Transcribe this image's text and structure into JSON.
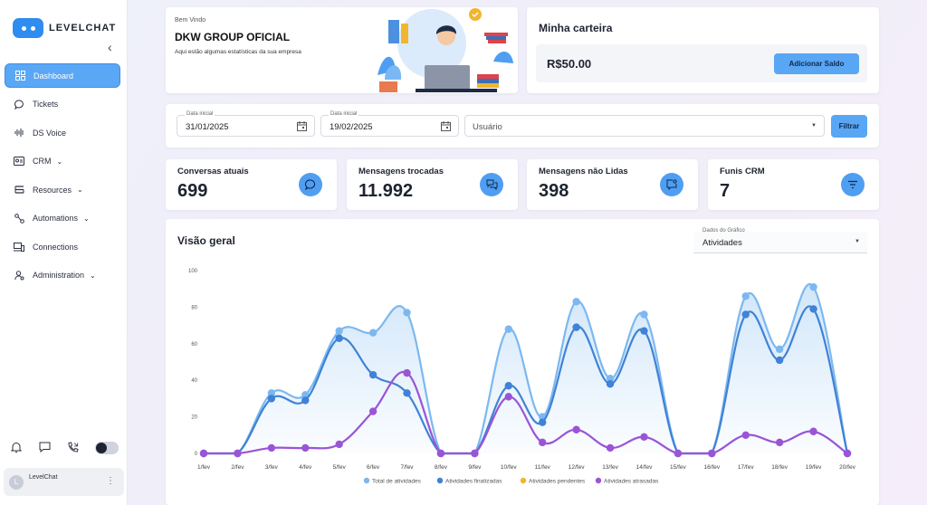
{
  "brand": {
    "name": "LEVELCHAT"
  },
  "sidebar": {
    "collapse_icon": "chevron-left-icon",
    "items": [
      {
        "label": "Dashboard",
        "icon": "grid-icon",
        "active": true
      },
      {
        "label": "Tickets",
        "icon": "chat-bubble-icon"
      },
      {
        "label": "DS Voice",
        "icon": "waveform-icon"
      },
      {
        "label": "CRM",
        "icon": "id-card-icon",
        "expandable": true
      },
      {
        "label": "Resources",
        "icon": "stack-icon",
        "expandable": true
      },
      {
        "label": "Automations",
        "icon": "flow-icon",
        "expandable": true
      },
      {
        "label": "Connections",
        "icon": "devices-icon"
      },
      {
        "label": "Administration",
        "icon": "user-gear-icon",
        "expandable": true
      }
    ],
    "bottom_icons": [
      "bell-icon",
      "message-icon",
      "phone-icon"
    ],
    "user": {
      "initial": "L",
      "name": "LevelChat"
    }
  },
  "welcome": {
    "greeting": "Bem Vindo",
    "company": "DKW GROUP OFICIAL",
    "subtitle": "Aqui estão algumas estatísticas da sua empresa"
  },
  "wallet": {
    "title": "Minha carteira",
    "balance": "R$50.00",
    "add_button": "Adicionar Saldo"
  },
  "filters": {
    "start_label": "Data inicial",
    "start_value": "31/01/2025",
    "end_label": "Data inicial",
    "end_value": "19/02/2025",
    "user_placeholder": "Usuário",
    "filter_button": "Filtrar"
  },
  "stats": [
    {
      "label": "Conversas atuais",
      "value": "699",
      "icon": "chat-bubble-icon"
    },
    {
      "label": "Mensagens trocadas",
      "value": "11.992",
      "icon": "chats-icon"
    },
    {
      "label": "Mensagens não Lidas",
      "value": "398",
      "icon": "unread-message-icon"
    },
    {
      "label": "Funis CRM",
      "value": "7",
      "icon": "filter-icon"
    }
  ],
  "overview": {
    "title": "Visão geral",
    "select_label": "Dados do Gráfico",
    "select_value": "Atividades"
  },
  "colors": {
    "accent": "#59a6f4",
    "series_total": "#7cb8f0",
    "series_finalizadas": "#3f82d6",
    "series_pendentes": "#f2b531",
    "series_atrasadas": "#9a55d6"
  },
  "chart_data": {
    "type": "line",
    "x": [
      "1/fev",
      "2/fev",
      "3/fev",
      "4/fev",
      "5/fev",
      "6/fev",
      "7/fev",
      "8/fev",
      "9/fev",
      "10/fev",
      "11/fev",
      "12/fev",
      "13/fev",
      "14/fev",
      "15/fev",
      "16/fev",
      "17/fev",
      "18/fev",
      "19/fev",
      "20/fev"
    ],
    "ylim": [
      0,
      100
    ],
    "yticks": [
      0,
      20,
      40,
      60,
      80,
      100
    ],
    "series": [
      {
        "name": "Total de atividades",
        "values": [
          0,
          0,
          33,
          32,
          67,
          66,
          77,
          0,
          0,
          68,
          20,
          83,
          41,
          76,
          0,
          0,
          86,
          57,
          91,
          0
        ]
      },
      {
        "name": "Atividades finalizadas",
        "values": [
          0,
          0,
          30,
          29,
          63,
          43,
          33,
          0,
          0,
          37,
          17,
          69,
          38,
          67,
          0,
          0,
          76,
          51,
          79,
          0
        ]
      },
      {
        "name": "Atividades pendentes",
        "values": [
          0,
          0,
          0,
          0,
          0,
          0,
          0,
          0,
          0,
          0,
          0,
          0,
          0,
          0,
          0,
          0,
          0,
          0,
          0,
          0
        ]
      },
      {
        "name": "Atividades atrasadas",
        "values": [
          0,
          0,
          3,
          3,
          5,
          23,
          44,
          0,
          0,
          31,
          6,
          13,
          3,
          9,
          0,
          0,
          10,
          6,
          12,
          0
        ]
      }
    ],
    "legend_position": "bottom"
  }
}
